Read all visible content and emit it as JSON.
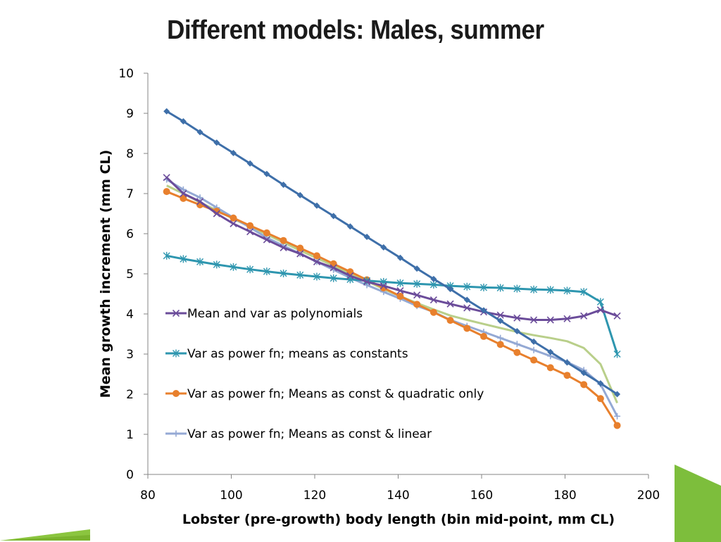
{
  "title": "Different models:  Males, summer",
  "chart_data": {
    "type": "line",
    "xlabel": "Lobster (pre-growth) body length (bin mid-point, mm CL)",
    "ylabel": "Mean growth increment (mm CL)",
    "xlim": [
      80,
      200
    ],
    "ylim": [
      0,
      10
    ],
    "xticks": [
      "80",
      "100",
      "120",
      "140",
      "160",
      "180",
      "200"
    ],
    "yticks": [
      "0",
      "1",
      "2",
      "3",
      "4",
      "5",
      "6",
      "7",
      "8",
      "9",
      "10"
    ],
    "grid": false,
    "legend_position": "inside-left",
    "x": [
      84.5,
      88.5,
      92.5,
      96.5,
      100.5,
      104.5,
      108.5,
      112.5,
      116.5,
      120.5,
      124.5,
      128.5,
      132.5,
      136.5,
      140.5,
      144.5,
      148.5,
      152.5,
      156.5,
      160.5,
      164.5,
      168.5,
      172.5,
      176.5,
      180.5,
      184.5,
      188.5,
      192.5
    ],
    "series": [
      {
        "name": "Mean and var as polynomials",
        "color": "#6B4C9A",
        "marker": "x",
        "in_legend": true,
        "values": [
          7.4,
          7.0,
          6.8,
          6.5,
          6.25,
          6.05,
          5.85,
          5.65,
          5.5,
          5.3,
          5.15,
          4.95,
          4.8,
          4.7,
          4.58,
          4.47,
          4.35,
          4.25,
          4.15,
          4.05,
          3.97,
          3.9,
          3.85,
          3.85,
          3.88,
          3.95,
          4.1,
          3.95
        ]
      },
      {
        "name": "Var as power fn; means as constants",
        "color": "#2E96AF",
        "marker": "asterisk",
        "in_legend": true,
        "values": [
          5.45,
          5.37,
          5.3,
          5.23,
          5.17,
          5.11,
          5.06,
          5.01,
          4.97,
          4.93,
          4.89,
          4.86,
          4.83,
          4.8,
          4.77,
          4.75,
          4.73,
          4.7,
          4.68,
          4.66,
          4.65,
          4.63,
          4.61,
          4.6,
          4.58,
          4.55,
          4.3,
          3.0
        ]
      },
      {
        "name": "Var as power fn; Means as const & quadratic only",
        "color": "#E8802D",
        "marker": "circle",
        "in_legend": true,
        "values": [
          7.05,
          6.88,
          6.72,
          6.56,
          6.39,
          6.2,
          6.02,
          5.83,
          5.64,
          5.45,
          5.25,
          5.05,
          4.85,
          4.65,
          4.44,
          4.24,
          4.04,
          3.84,
          3.64,
          3.44,
          3.24,
          3.04,
          2.85,
          2.66,
          2.47,
          2.24,
          1.89,
          1.22
        ]
      },
      {
        "name": "Var as power fn; Means as const & linear",
        "color": "#94A9D4",
        "marker": "plus",
        "in_legend": true,
        "values": [
          7.35,
          7.1,
          6.9,
          6.65,
          6.4,
          6.15,
          5.9,
          5.7,
          5.5,
          5.3,
          5.1,
          4.9,
          4.72,
          4.55,
          4.38,
          4.2,
          4.05,
          3.85,
          3.7,
          3.55,
          3.4,
          3.25,
          3.1,
          2.95,
          2.8,
          2.6,
          2.25,
          1.45
        ]
      },
      {
        "name": "",
        "color": "#3E6FA9",
        "marker": "diamond",
        "in_legend": false,
        "values": [
          9.05,
          8.8,
          8.53,
          8.27,
          8.01,
          7.75,
          7.49,
          7.22,
          6.96,
          6.7,
          6.44,
          6.18,
          5.92,
          5.66,
          5.4,
          5.13,
          4.87,
          4.62,
          4.35,
          4.09,
          3.83,
          3.57,
          3.31,
          3.05,
          2.79,
          2.53,
          2.27,
          2.0
        ]
      },
      {
        "name": "",
        "color": "#B9CF8A",
        "marker": "none",
        "in_legend": false,
        "values": [
          7.2,
          7.0,
          6.78,
          6.58,
          6.37,
          6.17,
          5.98,
          5.78,
          5.58,
          5.39,
          5.2,
          5.0,
          4.82,
          4.62,
          4.44,
          4.27,
          4.11,
          3.96,
          3.85,
          3.75,
          3.65,
          3.55,
          3.47,
          3.4,
          3.32,
          3.15,
          2.75,
          1.78
        ]
      }
    ]
  }
}
